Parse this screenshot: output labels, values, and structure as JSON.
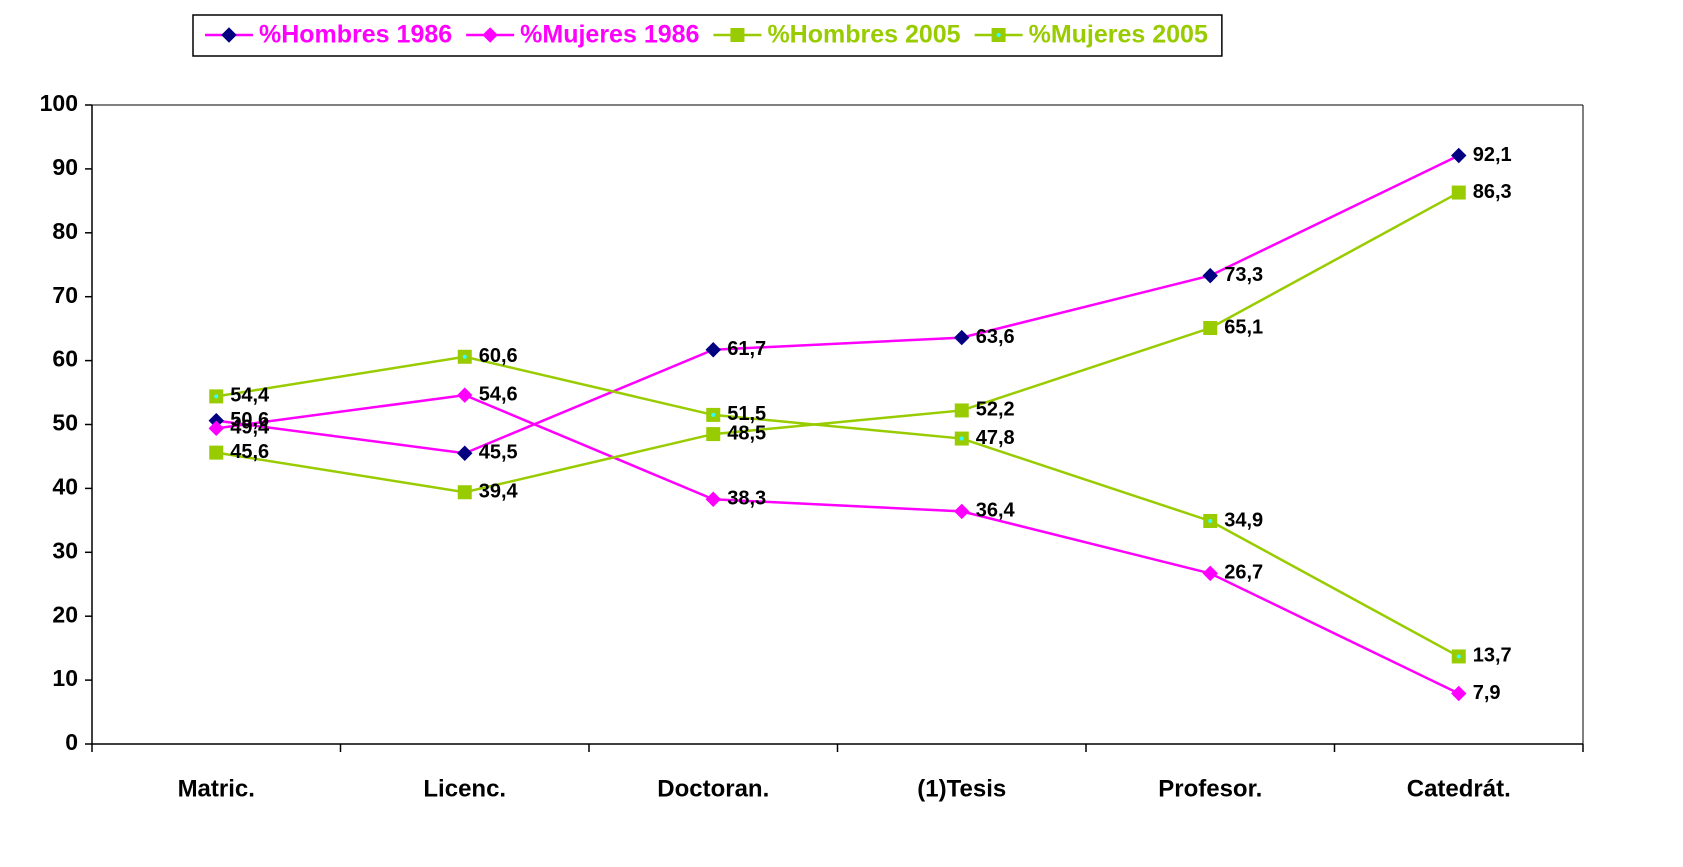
{
  "chart_data": {
    "type": "line",
    "categories": [
      "Matric.",
      "Licenc.",
      "Doctoran.",
      "(1)Tesis",
      "Profesor.",
      "Catedrát."
    ],
    "ylim": [
      0,
      100
    ],
    "yticks": [
      0,
      10,
      20,
      30,
      40,
      50,
      60,
      70,
      80,
      90,
      100
    ],
    "grid": false,
    "legend": "top",
    "series": [
      {
        "name": "%Hombres 1986",
        "color": "#ff00ff",
        "marker": "diamond",
        "marker_color": "#000080",
        "values": [
          50.6,
          45.5,
          61.7,
          63.6,
          73.3,
          92.1
        ],
        "value_labels": [
          "50,6",
          "45,5",
          "61,7",
          "63,6",
          "73,3",
          "92,1"
        ]
      },
      {
        "name": "%Mujeres 1986",
        "color": "#ff00ff",
        "marker": "diamond",
        "marker_color": "#ff00ff",
        "values": [
          49.4,
          54.6,
          38.3,
          36.4,
          26.7,
          7.9
        ],
        "value_labels": [
          "49,4",
          "54,6",
          "38,3",
          "36,4",
          "26,7",
          "7,9"
        ]
      },
      {
        "name": "%Hombres 2005",
        "color": "#99cc00",
        "marker": "square",
        "marker_color": "#99cc00",
        "values": [
          45.6,
          39.4,
          48.5,
          52.2,
          65.1,
          86.3
        ],
        "value_labels": [
          "45,6",
          "39,4",
          "48,5",
          "52,2",
          "65,1",
          "86,3"
        ]
      },
      {
        "name": "%Mujeres 2005",
        "color": "#99cc00",
        "marker": "square-dot",
        "marker_color": "#99cc00",
        "values": [
          54.4,
          60.6,
          51.5,
          47.8,
          34.9,
          13.7
        ],
        "value_labels": [
          "54,4",
          "60,6",
          "51,5",
          "47,8",
          "34,9",
          "13,7"
        ]
      }
    ]
  }
}
